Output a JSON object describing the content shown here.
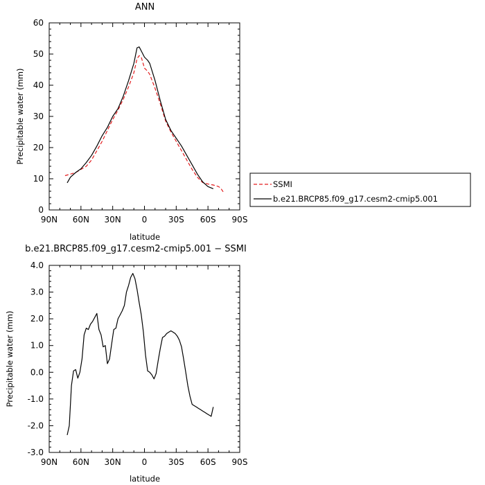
{
  "chart_data": [
    {
      "type": "line",
      "title": "ANN",
      "xlabel": "latitude",
      "ylabel": "Precipitable water (mm)",
      "xlim": [
        90,
        -90
      ],
      "ylim": [
        0,
        60
      ],
      "x_ticks": [
        {
          "value": 90,
          "label": "90N"
        },
        {
          "value": 60,
          "label": "60N"
        },
        {
          "value": 30,
          "label": "30N"
        },
        {
          "value": 0,
          "label": "0"
        },
        {
          "value": -30,
          "label": "30S"
        },
        {
          "value": -60,
          "label": "60S"
        },
        {
          "value": -90,
          "label": "90S"
        }
      ],
      "y_ticks": [
        0,
        10,
        20,
        30,
        40,
        50,
        60
      ],
      "legend": {
        "position": "right",
        "entries": [
          "SSMI",
          "b.e21.BRCP85.f09_g17.cesm2-cmip5.001"
        ]
      },
      "series": [
        {
          "name": "SSMI",
          "color": "#e31a1c",
          "dash": "dashed",
          "x": [
            75,
            70,
            65,
            60,
            55,
            50,
            45,
            40,
            35,
            30,
            25,
            20,
            15,
            10,
            7,
            5,
            3,
            0,
            -3,
            -5,
            -10,
            -15,
            -20,
            -25,
            -30,
            -35,
            -40,
            -45,
            -50,
            -55,
            -60,
            -65,
            -70,
            -72,
            -75
          ],
          "y": [
            11,
            11.5,
            12,
            13,
            14,
            16,
            19,
            22,
            25.5,
            29,
            32,
            35.5,
            39.5,
            44,
            48.5,
            49.5,
            49,
            45.5,
            44.5,
            43.5,
            39,
            34,
            28.5,
            25,
            22,
            19,
            16,
            13,
            10.5,
            8.8,
            8.3,
            8,
            7.5,
            7,
            5.5
          ]
        },
        {
          "name": "b.e21.BRCP85.f09_g17.cesm2-cmip5.001",
          "color": "#000000",
          "dash": "solid",
          "x": [
            73,
            70,
            65,
            60,
            55,
            50,
            45,
            40,
            35,
            30,
            25,
            20,
            15,
            10,
            7,
            5,
            3,
            0,
            -3,
            -5,
            -10,
            -15,
            -20,
            -25,
            -30,
            -35,
            -40,
            -45,
            -50,
            -55,
            -60,
            -65
          ],
          "y": [
            8.7,
            10.5,
            12,
            13.2,
            15.2,
            17.5,
            20.5,
            23.8,
            26.5,
            30,
            32.5,
            36.5,
            41.5,
            47,
            52,
            52.3,
            51,
            49,
            48,
            47,
            41.5,
            35,
            29,
            25.5,
            23,
            20.5,
            17.5,
            14.5,
            11.5,
            9,
            7.5,
            6.8
          ]
        }
      ]
    },
    {
      "type": "line",
      "title": "b.e21.BRCP85.f09_g17.cesm2-cmip5.001 − SSMI",
      "xlabel": "latitude",
      "ylabel": "Precipitable water (mm)",
      "xlim": [
        90,
        -90
      ],
      "ylim": [
        -3.0,
        4.0
      ],
      "x_ticks": [
        {
          "value": 90,
          "label": "90N"
        },
        {
          "value": 60,
          "label": "60N"
        },
        {
          "value": 30,
          "label": "30N"
        },
        {
          "value": 0,
          "label": "0"
        },
        {
          "value": -30,
          "label": "30S"
        },
        {
          "value": -60,
          "label": "60S"
        },
        {
          "value": -90,
          "label": "90S"
        }
      ],
      "y_ticks": [
        {
          "value": 4,
          "label": "4.0"
        },
        {
          "value": 3,
          "label": "3.0"
        },
        {
          "value": 2,
          "label": "2.0"
        },
        {
          "value": 1,
          "label": "1.0"
        },
        {
          "value": 0,
          "label": "0.0"
        },
        {
          "value": -1,
          "label": "-1.0"
        },
        {
          "value": -2,
          "label": "-2.0"
        },
        {
          "value": -3,
          "label": "-3.0"
        }
      ],
      "series": [
        {
          "color": "#000000",
          "dash": "solid",
          "x": [
            73,
            71,
            69,
            67,
            65,
            63,
            61,
            59,
            57,
            55,
            53,
            51,
            49,
            47,
            45,
            43,
            41,
            39,
            37,
            35,
            33,
            31,
            29,
            27,
            25,
            23,
            21,
            19,
            17,
            15,
            13,
            11,
            9,
            7,
            5,
            3,
            1,
            -1,
            -3,
            -5,
            -7,
            -9,
            -11,
            -13,
            -15,
            -17,
            -19,
            -21,
            -23,
            -25,
            -27,
            -29,
            -31,
            -33,
            -35,
            -37,
            -39,
            -41,
            -43,
            -45,
            -47,
            -49,
            -51,
            -53,
            -55,
            -57,
            -59,
            -61,
            -63,
            -65
          ],
          "y": [
            -2.35,
            -2.0,
            -0.5,
            0.05,
            0.1,
            -0.22,
            0.0,
            0.5,
            1.4,
            1.65,
            1.6,
            1.8,
            1.9,
            2.05,
            2.2,
            1.6,
            1.4,
            0.95,
            1.0,
            0.32,
            0.5,
            1.05,
            1.6,
            1.65,
            2.0,
            2.15,
            2.3,
            2.5,
            3.0,
            3.25,
            3.55,
            3.7,
            3.5,
            3.1,
            2.6,
            2.15,
            1.5,
            0.65,
            0.05,
            0.0,
            -0.1,
            -0.25,
            -0.05,
            0.45,
            0.9,
            1.3,
            1.35,
            1.45,
            1.5,
            1.55,
            1.5,
            1.45,
            1.35,
            1.2,
            0.95,
            0.5,
            0.0,
            -0.5,
            -0.9,
            -1.2,
            -1.25,
            -1.3,
            -1.35,
            -1.4,
            -1.45,
            -1.5,
            -1.55,
            -1.6,
            -1.65,
            -1.3
          ]
        }
      ]
    }
  ]
}
